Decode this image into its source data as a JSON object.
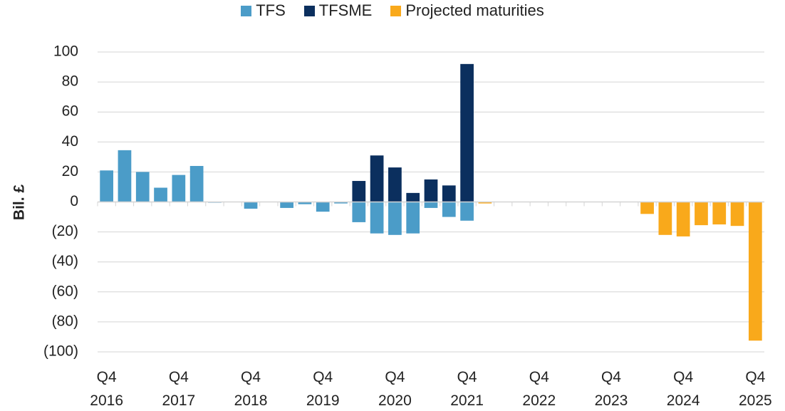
{
  "chart_data": {
    "type": "bar",
    "stacked": true,
    "ylabel": "Bil. £",
    "categories": [
      "Q4 2016",
      null,
      null,
      null,
      "Q4 2017",
      null,
      null,
      null,
      "Q4 2018",
      null,
      null,
      null,
      "Q4 2019",
      null,
      null,
      null,
      "Q4 2020",
      null,
      null,
      null,
      "Q4 2021",
      null,
      null,
      null,
      "Q4 2022",
      null,
      null,
      null,
      "Q4 2023",
      null,
      null,
      null,
      "Q4 2024",
      null,
      null,
      null,
      "Q4 2025"
    ],
    "series": [
      {
        "name": "TFS",
        "color": "#4b9cc8",
        "values": [
          21,
          34.5,
          20,
          9.5,
          18,
          24,
          -0.5,
          null,
          -4.5,
          null,
          -4,
          -1.5,
          -6.5,
          -1,
          -13.5,
          -21,
          -22,
          -21,
          -4,
          -10,
          -12.5,
          null,
          null,
          null,
          null,
          null,
          null,
          null,
          null,
          null,
          null,
          null,
          null,
          null,
          null,
          null,
          null
        ]
      },
      {
        "name": "TFSME",
        "color": "#0b2f5e",
        "values": [
          null,
          null,
          null,
          null,
          null,
          null,
          null,
          null,
          null,
          null,
          null,
          null,
          null,
          null,
          14,
          31,
          23,
          6,
          15,
          11,
          92,
          null,
          null,
          null,
          null,
          null,
          null,
          null,
          null,
          null,
          null,
          null,
          null,
          null,
          null,
          null,
          null
        ]
      },
      {
        "name": "Projected maturities",
        "color": "#f9a91b",
        "values": [
          null,
          null,
          null,
          null,
          null,
          null,
          null,
          null,
          null,
          null,
          null,
          null,
          null,
          null,
          null,
          null,
          null,
          null,
          null,
          null,
          null,
          -1,
          null,
          null,
          null,
          null,
          null,
          null,
          null,
          null,
          -8,
          -22,
          -23,
          -15.5,
          -15,
          -16,
          -92.5
        ]
      }
    ],
    "ylim": [
      -100,
      100
    ],
    "yticks": [
      {
        "value": -100,
        "label": "(100)"
      },
      {
        "value": -80,
        "label": "(80)"
      },
      {
        "value": -60,
        "label": "(60)"
      },
      {
        "value": -40,
        "label": "(40)"
      },
      {
        "value": -20,
        "label": "(20)"
      },
      0,
      20,
      40,
      60,
      80,
      100
    ],
    "grid": true,
    "legend": "top"
  }
}
